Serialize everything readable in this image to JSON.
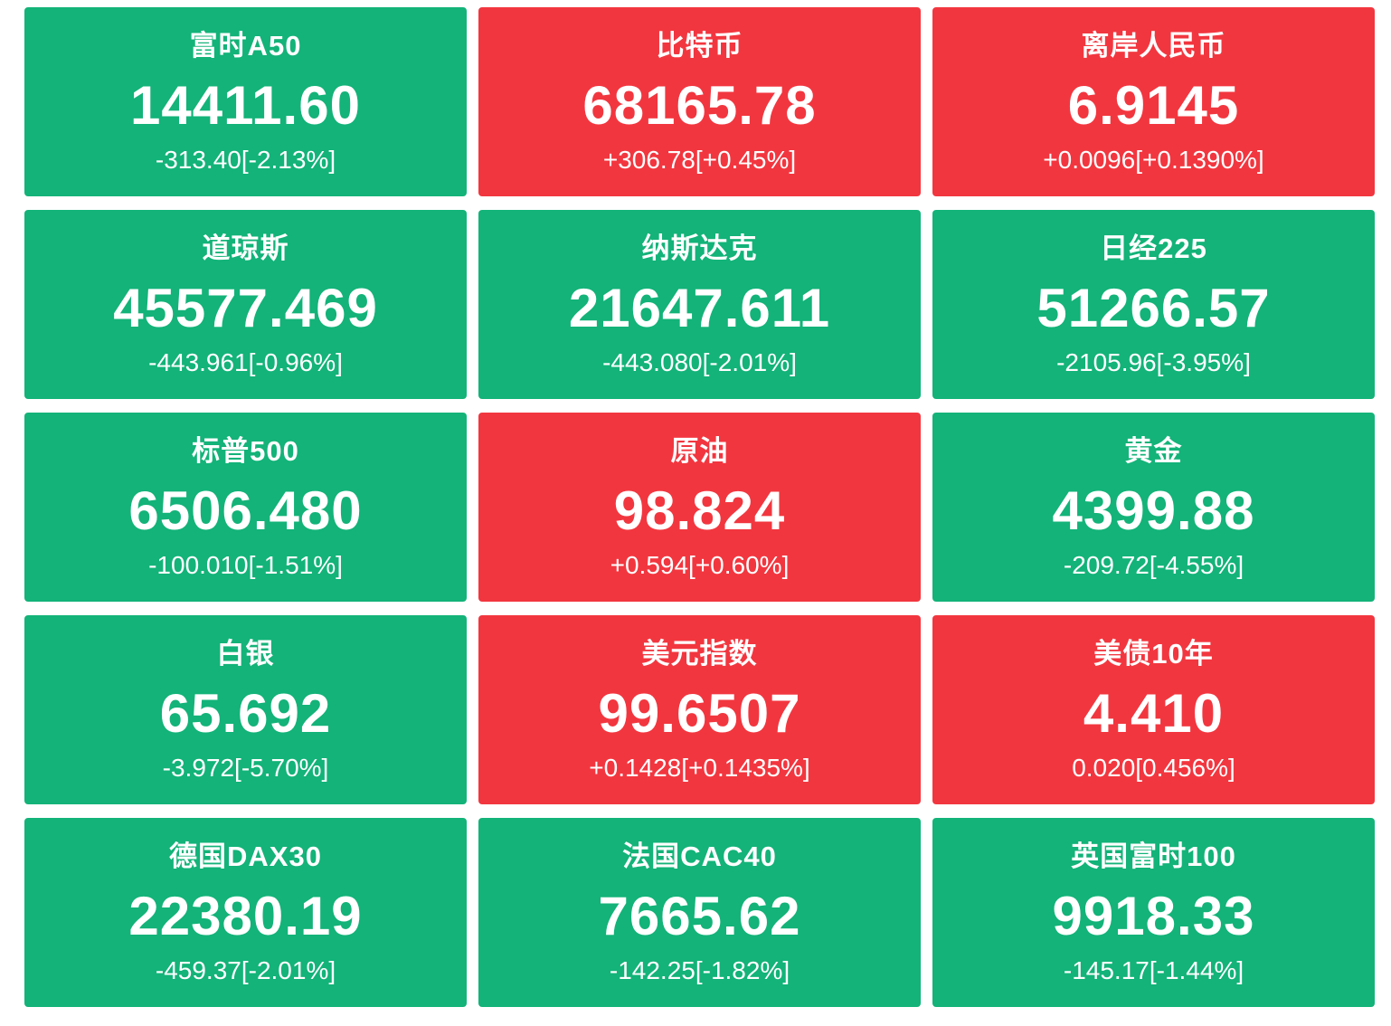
{
  "colors": {
    "up": "#f2363f",
    "down": "#13b379",
    "text": "#ffffff",
    "background": "#ffffff"
  },
  "tiles": [
    {
      "name": "富时A50",
      "value": "14411.60",
      "change": "-313.40[-2.13%]",
      "trend": "down"
    },
    {
      "name": "比特币",
      "value": "68165.78",
      "change": "+306.78[+0.45%]",
      "trend": "up"
    },
    {
      "name": "离岸人民币",
      "value": "6.9145",
      "change": "+0.0096[+0.1390%]",
      "trend": "up"
    },
    {
      "name": "道琼斯",
      "value": "45577.469",
      "change": "-443.961[-0.96%]",
      "trend": "down"
    },
    {
      "name": "纳斯达克",
      "value": "21647.611",
      "change": "-443.080[-2.01%]",
      "trend": "down"
    },
    {
      "name": "日经225",
      "value": "51266.57",
      "change": "-2105.96[-3.95%]",
      "trend": "down"
    },
    {
      "name": "标普500",
      "value": "6506.480",
      "change": "-100.010[-1.51%]",
      "trend": "down"
    },
    {
      "name": "原油",
      "value": "98.824",
      "change": "+0.594[+0.60%]",
      "trend": "up"
    },
    {
      "name": "黄金",
      "value": "4399.88",
      "change": "-209.72[-4.55%]",
      "trend": "down"
    },
    {
      "name": "白银",
      "value": "65.692",
      "change": "-3.972[-5.70%]",
      "trend": "down"
    },
    {
      "name": "美元指数",
      "value": "99.6507",
      "change": "+0.1428[+0.1435%]",
      "trend": "up"
    },
    {
      "name": "美债10年",
      "value": "4.410",
      "change": "0.020[0.456%]",
      "trend": "up"
    },
    {
      "name": "德国DAX30",
      "value": "22380.19",
      "change": "-459.37[-2.01%]",
      "trend": "down"
    },
    {
      "name": "法国CAC40",
      "value": "7665.62",
      "change": "-142.25[-1.82%]",
      "trend": "down"
    },
    {
      "name": "英国富时100",
      "value": "9918.33",
      "change": "-145.17[-1.44%]",
      "trend": "down"
    }
  ]
}
